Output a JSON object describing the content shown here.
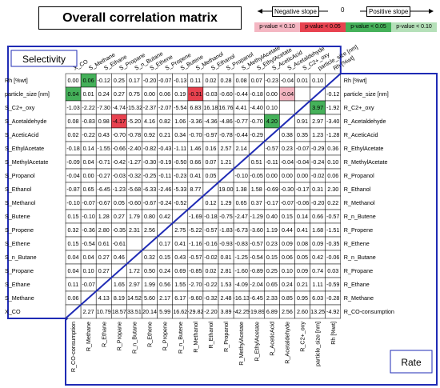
{
  "title": "Overall correlation matrix",
  "legend": {
    "negative": "Negative slope",
    "zero": "0",
    "positive": "Positive slope",
    "items": [
      {
        "label": "p-value < 0.10",
        "color": "#f4b6c2"
      },
      {
        "label": "p-value < 0.05",
        "color": "#e8424f"
      },
      {
        "label": "p-value < 0.05",
        "color": "#45b15a"
      },
      {
        "label": "p-value < 0.10",
        "color": "#b5e0b9"
      }
    ]
  },
  "selectivity_label": "Selectivity",
  "rate_label": "Rate",
  "chart_data": {
    "type": "heatmap",
    "top_labels": [
      "X_CO",
      "S_Methane",
      "S_Ethane",
      "S_Propane",
      "S_n_Butane",
      "S_Ethene",
      "S_Propene",
      "S_Butene",
      "S_Methanol",
      "S_Ethanol",
      "S_Propanol",
      "S_MethylAcetate",
      "S_EthylAcetate",
      "S_AceticAcid",
      "S_Acetaldehyde",
      "S_C2+_oxy",
      "particle_size [nm]",
      "Rh [%wt]"
    ],
    "left_labels": [
      "Rh [%wt]",
      "particle_size [nm]",
      "S_C2+_oxy",
      "S_Acetaldehyde",
      "S_AceticAcid",
      "S_EthylAcetate",
      "S_MethylAcetate",
      "S_Propanol",
      "S_Ethanol",
      "S_Methanol",
      "S_Butene",
      "S_Propene",
      "S_Ethene",
      "S_n_Butane",
      "S_Propane",
      "S_Ethane",
      "S_Methane",
      "X_CO"
    ],
    "right_labels": [
      "Rh [%wt]",
      "particle_size [nm]",
      "R_C2+_oxy",
      "R_Acetaldehyde",
      "R_AceticAcid",
      "R_EthylAcetate",
      "R_MethylAcetate",
      "R_Propanol",
      "R_Ethanol",
      "R_Methanol",
      "R_n_Butene",
      "R_Propene",
      "R_Ethene",
      "R_n_Butane",
      "R_Propane",
      "R_Ethane",
      "R_Methane",
      "R_CO-consumption"
    ],
    "bottom_labels": [
      "R_CO-consumption",
      "R_Methane",
      "R_Ethane",
      "R_Propane",
      "R_n_Butane",
      "R_Ethene",
      "R_Propene",
      "R_n_Butene",
      "R_Methanol",
      "R_Ethanol",
      "R_Propanol",
      "R_MethylAcetate",
      "R_EthylAcetate",
      "R_AceticAcid",
      "R_Acetaldehyde",
      "R_C2+_oxy",
      "particle_size [nm]",
      "Rh [%wt]"
    ],
    "values": [
      [
        "0.00",
        "0.06",
        "-0.12",
        "0.25",
        "0.17",
        "-0.20",
        "-0.07",
        "-0.13",
        "0.11",
        "0.02",
        "0.28",
        "0.08",
        "0.07",
        "-0.23",
        "-0.04",
        "0.01",
        "0.10",
        ""
      ],
      [
        "0.04",
        "0.01",
        "0.24",
        "0.27",
        "0.75",
        "0.00",
        "0.06",
        "0.19",
        "-0.31",
        "-0.03",
        "-0.60",
        "-0.44",
        "-0.18",
        "0.00",
        "-0.04",
        "",
        "",
        "-0.12"
      ],
      [
        "-1.03",
        "-2.22",
        "-7.30",
        "-4.74",
        "-15.32",
        "-2.37",
        "-2.07",
        "-5.54",
        "6.83",
        "16.18",
        "16.76",
        "4.41",
        "-4.40",
        "0.10",
        "",
        "",
        "3.97",
        "-1.92"
      ],
      [
        "0.08",
        "-0.83",
        "0.98",
        "-4.17",
        "-5.20",
        "4.16",
        "0.82",
        "1.06",
        "-3.36",
        "-4.36",
        "-4.86",
        "-0.77",
        "-0.70",
        "4.20",
        "",
        "0.91",
        "2.97",
        "-3.40"
      ],
      [
        "0.02",
        "-0.22",
        "0.43",
        "-0.70",
        "-0.78",
        "0.92",
        "0.21",
        "0.34",
        "-0.70",
        "-0.97",
        "-0.78",
        "-0.44",
        "-0.29",
        "",
        "0.38",
        "0.35",
        "1.23",
        "-1.28"
      ],
      [
        "-0.18",
        "0.14",
        "-1.55",
        "-0.66",
        "-2.40",
        "-0.82",
        "-0.43",
        "-1.11",
        "1.46",
        "0.16",
        "2.57",
        "2.14",
        "",
        "-0.57",
        "0.23",
        "-0.07",
        "-0.29",
        "0.36"
      ],
      [
        "-0.09",
        "0.04",
        "-0.71",
        "-0.42",
        "-1.27",
        "-0.30",
        "-0.19",
        "-0.50",
        "0.66",
        "0.07",
        "1.21",
        "",
        "0.51",
        "-0.11",
        "-0.04",
        "-0.04",
        "-0.24",
        "0.10"
      ],
      [
        "-0.04",
        "0.00",
        "-0.27",
        "-0.03",
        "-0.32",
        "-0.25",
        "-0.11",
        "-0.23",
        "0.41",
        "0.05",
        "",
        "-0.10",
        "-0.05",
        "0.00",
        "0.00",
        "0.00",
        "-0.02",
        "0.06"
      ],
      [
        "-0.87",
        "0.65",
        "-6.45",
        "-1.23",
        "-5.68",
        "-6.33",
        "-2.46",
        "-5.33",
        "8.77",
        "",
        "19.00",
        "1.38",
        "1.58",
        "-0.69",
        "-0.30",
        "-0.17",
        "0.31",
        "2.30"
      ],
      [
        "-0.10",
        "-0.07",
        "-0.67",
        "0.05",
        "-0.60",
        "-0.67",
        "-0.24",
        "-0.52",
        "",
        "0.12",
        "1.29",
        "0.65",
        "0.37",
        "-0.17",
        "-0.07",
        "-0.06",
        "-0.20",
        "0.22"
      ],
      [
        "0.15",
        "-0.10",
        "1.28",
        "0.27",
        "1.79",
        "0.80",
        "0.42",
        "",
        "-1.69",
        "-0.18",
        "-0.75",
        "-2.47",
        "-1.29",
        "0.40",
        "0.15",
        "0.14",
        "0.66",
        "-0.57"
      ],
      [
        "0.32",
        "-0.36",
        "2.80",
        "-0.35",
        "2.31",
        "2.56",
        "",
        "2.75",
        "-5.22",
        "-0.57",
        "-1.83",
        "-6.73",
        "-3.60",
        "1.19",
        "0.44",
        "0.41",
        "1.68",
        "-1.51"
      ],
      [
        "0.15",
        "-0.54",
        "0.61",
        "-0.61",
        "",
        "",
        "0.17",
        "0.41",
        "-1.16",
        "-0.16",
        "-0.93",
        "-0.83",
        "-0.57",
        "0.23",
        "0.09",
        "0.08",
        "0.09",
        "-0.35"
      ],
      [
        "0.04",
        "0.04",
        "0.27",
        "0.46",
        "",
        "0.32",
        "0.15",
        "0.43",
        "-0.57",
        "-0.02",
        "0.81",
        "-1.25",
        "-0.54",
        "0.15",
        "0.06",
        "0.05",
        "0.42",
        "-0.06"
      ],
      [
        "0.04",
        "0.10",
        "0.27",
        "",
        "1.72",
        "0.50",
        "0.24",
        "0.69",
        "-0.85",
        "0.02",
        "2.81",
        "-1.60",
        "-0.89",
        "0.25",
        "0.10",
        "0.09",
        "0.74",
        "0.03"
      ],
      [
        "0.11",
        "-0.07",
        "",
        "1.65",
        "2.97",
        "1.99",
        "0.56",
        "1.55",
        "-2.70",
        "-0.22",
        "1.53",
        "-4.09",
        "-2.04",
        "0.65",
        "0.24",
        "0.21",
        "1.11",
        "-0.59"
      ],
      [
        "0.06",
        "",
        "4.13",
        "8.19",
        "14.52",
        "5.60",
        "2.17",
        "6.17",
        "-9.60",
        "-0.32",
        "2.48",
        "-16.13",
        "-6.45",
        "2.33",
        "0.85",
        "0.95",
        "6.03",
        "-0.28"
      ],
      [
        "",
        "2.27",
        "10.79",
        "18.57",
        "33.51",
        "20.14",
        "5.99",
        "16.62",
        "-29.82",
        "-2.20",
        "3.89",
        "-42.25",
        "-19.89",
        "6.89",
        "2.56",
        "2.60",
        "13.25",
        "-4.92"
      ]
    ],
    "colors": [
      [
        "",
        "g2",
        "",
        "",
        "",
        "",
        "",
        "",
        "",
        "",
        "",
        "",
        "",
        "",
        "",
        "",
        "",
        ""
      ],
      [
        "g2",
        "",
        "",
        "",
        "",
        "",
        "",
        "",
        "r2",
        "",
        "",
        "",
        "",
        "",
        "r1",
        "",
        "",
        ""
      ],
      [
        "",
        "",
        "",
        "",
        "",
        "",
        "",
        "",
        "",
        "",
        "",
        "",
        "",
        "",
        "",
        "",
        "g2",
        ""
      ],
      [
        "",
        "",
        "",
        "r2",
        "",
        "",
        "",
        "",
        "",
        "",
        "",
        "",
        "",
        "g2",
        "",
        "",
        "",
        ""
      ],
      [
        "",
        "",
        "",
        "",
        "",
        "",
        "",
        "",
        "",
        "",
        "",
        "",
        "",
        "",
        "",
        "",
        "",
        ""
      ],
      [
        "",
        "",
        "",
        "",
        "",
        "",
        "",
        "",
        "",
        "",
        "",
        "",
        "",
        "",
        "",
        "",
        "",
        ""
      ],
      [
        "",
        "",
        "",
        "",
        "",
        "",
        "",
        "",
        "",
        "",
        "",
        "",
        "",
        "",
        "",
        "",
        "",
        ""
      ],
      [
        "",
        "",
        "",
        "",
        "",
        "",
        "",
        "",
        "",
        "",
        "",
        "",
        "",
        "",
        "",
        "",
        "",
        ""
      ],
      [
        "",
        "",
        "",
        "",
        "",
        "",
        "",
        "",
        "",
        "",
        "",
        "",
        "",
        "",
        "",
        "",
        "",
        ""
      ],
      [
        "",
        "",
        "",
        "",
        "",
        "",
        "",
        "",
        "",
        "",
        "",
        "",
        "",
        "",
        "",
        "",
        "",
        ""
      ],
      [
        "",
        "",
        "",
        "",
        "",
        "",
        "",
        "",
        "",
        "",
        "",
        "",
        "",
        "",
        "",
        "",
        "",
        ""
      ],
      [
        "",
        "",
        "",
        "",
        "",
        "",
        "",
        "",
        "",
        "",
        "",
        "",
        "",
        "",
        "",
        "",
        "",
        ""
      ],
      [
        "",
        "",
        "",
        "",
        "",
        "",
        "",
        "",
        "",
        "",
        "",
        "",
        "",
        "",
        "",
        "",
        "",
        ""
      ],
      [
        "",
        "",
        "",
        "",
        "",
        "",
        "",
        "",
        "",
        "",
        "",
        "",
        "",
        "",
        "",
        "",
        "",
        ""
      ],
      [
        "",
        "",
        "",
        "",
        "",
        "",
        "",
        "",
        "",
        "",
        "",
        "",
        "",
        "",
        "",
        "",
        "",
        ""
      ],
      [
        "",
        "",
        "",
        "",
        "",
        "",
        "",
        "",
        "",
        "",
        "",
        "",
        "",
        "",
        "",
        "",
        "",
        ""
      ],
      [
        "",
        "",
        "",
        "",
        "",
        "",
        "",
        "",
        "",
        "",
        "",
        "",
        "",
        "",
        "",
        "",
        "",
        ""
      ],
      [
        "",
        "",
        "",
        "",
        "",
        "",
        "",
        "",
        "",
        "",
        "",
        "",
        "",
        "",
        "",
        "",
        "",
        ""
      ]
    ]
  }
}
